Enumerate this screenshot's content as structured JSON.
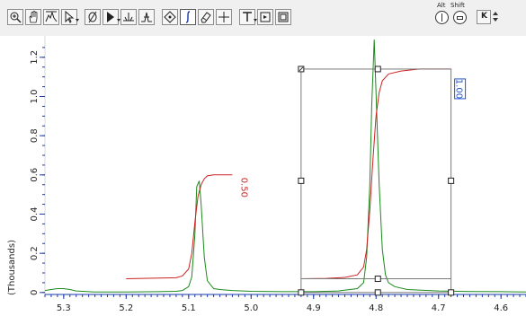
{
  "toolbar": {
    "tools": [
      {
        "id": "zoom",
        "icon": "magnifier-icon",
        "active": false
      },
      {
        "id": "pan",
        "icon": "hand-icon",
        "active": false
      },
      {
        "id": "autoscale",
        "icon": "autoscale-icon",
        "active": false
      },
      {
        "id": "pointer",
        "icon": "arrow-pointer-icon",
        "active": false
      },
      {
        "id": "phase",
        "icon": "phase-icon",
        "active": false
      },
      {
        "id": "peak-pick",
        "icon": "peak-arrow-icon",
        "active": false
      },
      {
        "id": "baseline",
        "icon": "baseline-icon",
        "active": false
      },
      {
        "id": "peak",
        "icon": "peak-icon",
        "active": false
      },
      {
        "id": "diamond",
        "icon": "diamond-icon",
        "active": false
      },
      {
        "id": "integral",
        "icon": "integral-icon",
        "active": true
      },
      {
        "id": "eraser",
        "icon": "eraser-icon",
        "active": false
      },
      {
        "id": "crosshair",
        "icon": "crosshair-icon",
        "active": false
      },
      {
        "id": "text",
        "icon": "text-icon",
        "active": false
      },
      {
        "id": "fit",
        "icon": "fit-icon",
        "active": false
      },
      {
        "id": "frame",
        "icon": "frame-icon",
        "active": false
      }
    ],
    "alt_label": "Alt",
    "shift_label": "Shift"
  },
  "colors": {
    "spectrum": "#1c8a1c",
    "integral": "#cc2222",
    "selection": "#7a7a7a",
    "label_red": "#cc2222",
    "label_blue": "#2255cc",
    "axis_blue": "#1a3aa8",
    "frame": "#d8d8d8"
  },
  "chart_data": {
    "type": "line",
    "x_axis": {
      "ticks": [
        "5.3",
        "5.2",
        "5.1",
        "5.0",
        "4.9",
        "4.8",
        "4.7",
        "4.6"
      ],
      "range": [
        5.33,
        4.56
      ],
      "reversed": true
    },
    "y_axis": {
      "ticks": [
        "0",
        "0.2",
        "0.4",
        "0.6",
        "0.8",
        "1.0",
        "1.2"
      ],
      "range": [
        -0.01,
        1.3
      ],
      "unit_label": "(Thousands)"
    },
    "series": [
      {
        "kind": "spectrum",
        "x": [
          5.33,
          5.32,
          5.31,
          5.3,
          5.29,
          5.28,
          5.25,
          5.2,
          5.15,
          5.12,
          5.11,
          5.1,
          5.095,
          5.09,
          5.087,
          5.083,
          5.08,
          5.075,
          5.07,
          5.06,
          5.05,
          5.03,
          5.0,
          4.95,
          4.9,
          4.86,
          4.83,
          4.82,
          4.815,
          4.81,
          4.807,
          4.803,
          4.8,
          4.795,
          4.79,
          4.785,
          4.78,
          4.77,
          4.75,
          4.7,
          4.65,
          4.6,
          4.56
        ],
        "y": [
          0.01,
          0.015,
          0.02,
          0.02,
          0.015,
          0.008,
          0.003,
          0.003,
          0.004,
          0.006,
          0.01,
          0.03,
          0.08,
          0.3,
          0.54,
          0.57,
          0.45,
          0.18,
          0.06,
          0.02,
          0.015,
          0.01,
          0.006,
          0.004,
          0.004,
          0.008,
          0.02,
          0.05,
          0.18,
          0.55,
          0.95,
          1.29,
          1.02,
          0.55,
          0.22,
          0.09,
          0.05,
          0.03,
          0.015,
          0.008,
          0.005,
          0.004,
          0.003
        ]
      },
      {
        "kind": "integral",
        "label": "0.50",
        "x": [
          5.2,
          5.12,
          5.11,
          5.1,
          5.095,
          5.09,
          5.085,
          5.08,
          5.075,
          5.07,
          5.06,
          5.05,
          5.03
        ],
        "y": [
          0.07,
          0.075,
          0.085,
          0.12,
          0.2,
          0.36,
          0.49,
          0.55,
          0.58,
          0.595,
          0.6,
          0.6,
          0.6
        ]
      },
      {
        "kind": "integral",
        "label": "1.00",
        "x": [
          4.92,
          4.88,
          4.85,
          4.83,
          4.82,
          4.815,
          4.81,
          4.805,
          4.8,
          4.795,
          4.79,
          4.78,
          4.76,
          4.73,
          4.7,
          4.68
        ],
        "y": [
          0.07,
          0.072,
          0.077,
          0.09,
          0.13,
          0.22,
          0.42,
          0.68,
          0.9,
          1.02,
          1.08,
          1.115,
          1.13,
          1.14,
          1.14,
          1.14
        ]
      }
    ],
    "selection_box": {
      "x": [
        4.92,
        4.68
      ],
      "y": [
        0.0,
        1.14
      ]
    }
  }
}
